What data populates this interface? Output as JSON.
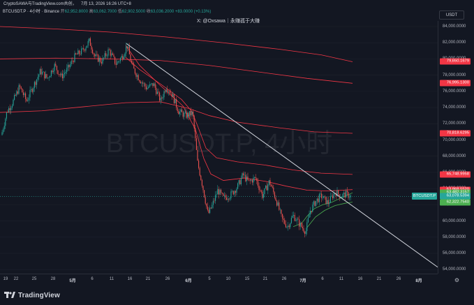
{
  "topbar": {
    "left": "CryptoSAWA与TradingView.com共创，",
    "datetime": "7月 13, 2026 16:26 UTC+8"
  },
  "legend": {
    "symbol": "BTCUSDT.P · 4小时 · Binance",
    "open_label": "开",
    "open": "62,952.8000",
    "high_label": "高",
    "high": "63,062.7000",
    "low_label": "低",
    "low": "62,902.5000",
    "close_label": "收",
    "close": "63,036.2000",
    "change": "+83.0000 (+0.13%)"
  },
  "attribution": "X: @Oxsawa｜永赚孤于大赚",
  "currency_button": "USDT",
  "watermark": "BTCUSDT.P, 4小时",
  "colors": {
    "background": "#131722",
    "up": "#26a69a",
    "down": "#ef5350",
    "trendline": "#d1d4dc",
    "ema": "#f23645",
    "short_ma": "#4caf50"
  },
  "price_axis": {
    "ticks": [
      {
        "label": "84,000.0000",
        "value": 84000
      },
      {
        "label": "82,000.0000",
        "value": 82000
      },
      {
        "label": "80,000.0000",
        "value": 80000
      },
      {
        "label": "78,000.0000",
        "value": 78000
      },
      {
        "label": "76,000.0000",
        "value": 76000
      },
      {
        "label": "74,000.0000",
        "value": 74000
      },
      {
        "label": "72,000.0000",
        "value": 72000
      },
      {
        "label": "70,000.0000",
        "value": 70000
      },
      {
        "label": "68,000.0000",
        "value": 68000
      },
      {
        "label": "66,000.0000",
        "value": 66000
      },
      {
        "label": "64,000.0000",
        "value": 64000
      },
      {
        "label": "62,000.0000",
        "value": 62000
      },
      {
        "label": "60,000.0000",
        "value": 60000
      },
      {
        "label": "58,000.0000",
        "value": 58000
      },
      {
        "label": "56,000.0000",
        "value": 56000
      },
      {
        "label": "54,000.0000",
        "value": 54000
      }
    ],
    "badges": [
      {
        "label": "79,650.1679",
        "value": 79650.1679,
        "color": "#f23645"
      },
      {
        "label": "76,995.1300",
        "value": 76995.13,
        "color": "#f23645"
      },
      {
        "label": "70,818.6295",
        "value": 70818.6295,
        "color": "#f23645"
      },
      {
        "label": "65,748.9958",
        "value": 65748.9958,
        "color": "#f23645"
      },
      {
        "label": "63,868.5520",
        "value": 63868.552,
        "color": "#f23645"
      },
      {
        "label": "63,482.3157",
        "value": 63482.3157,
        "color": "#4caf50"
      },
      {
        "label": "63,078.5394",
        "value": 63078.5394,
        "color": "#26a69a"
      },
      {
        "label": "62,322.7540",
        "value": 62322.754,
        "color": "#4caf50"
      }
    ],
    "symbol_badge": {
      "label": "BTCUSDT.P",
      "value": 63036.2
    },
    "range": [
      53000,
      85000
    ]
  },
  "time_axis": {
    "ticks": [
      {
        "label": "19",
        "bold": false
      },
      {
        "label": "22",
        "bold": false
      },
      {
        "label": "25",
        "bold": false
      },
      {
        "label": "28",
        "bold": false
      },
      {
        "label": "5月",
        "bold": true
      },
      {
        "label": "6",
        "bold": false
      },
      {
        "label": "11",
        "bold": false
      },
      {
        "label": "16",
        "bold": false
      },
      {
        "label": "21",
        "bold": false
      },
      {
        "label": "26",
        "bold": false
      },
      {
        "label": "6月",
        "bold": true
      },
      {
        "label": "5",
        "bold": false
      },
      {
        "label": "10",
        "bold": false
      },
      {
        "label": "15",
        "bold": false
      },
      {
        "label": "21",
        "bold": false
      },
      {
        "label": "26",
        "bold": false
      },
      {
        "label": "7月",
        "bold": true
      },
      {
        "label": "6",
        "bold": false
      },
      {
        "label": "11",
        "bold": false
      },
      {
        "label": "16",
        "bold": false
      },
      {
        "label": "21",
        "bold": false
      },
      {
        "label": "26",
        "bold": false
      },
      {
        "label": "8月",
        "bold": true
      }
    ]
  },
  "settings_icon": "gear-icon",
  "footer": {
    "brand": "TradingView"
  }
}
